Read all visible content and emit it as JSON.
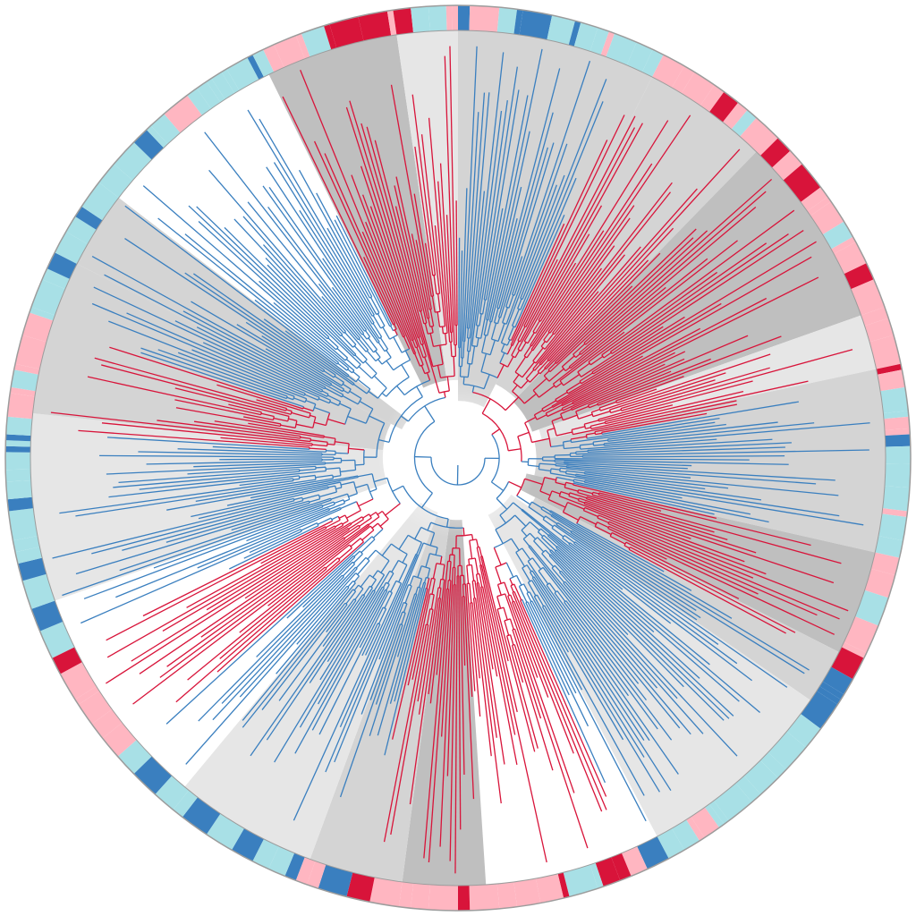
{
  "figure": {
    "type": "circular-phylogenetic-tree",
    "leaf_count": 480,
    "lineage_colors": {
      "red": "#d8143a",
      "blue": "#3a7fbf"
    },
    "outer_ring_colors": {
      "dark_red": "#d8143a",
      "pink": "#ffb6c1",
      "light_blue": "#a8e0e6",
      "dark_blue": "#3a7fbf"
    },
    "clade_background_colors": [
      "#bfbfbf",
      "#d4d4d4",
      "#e6e6e6",
      "#ffffff"
    ],
    "outer_ring_border_color": "#9c9c9c"
  }
}
